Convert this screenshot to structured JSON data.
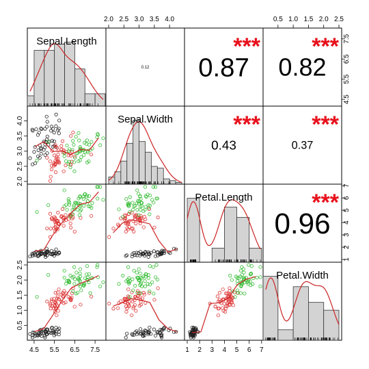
{
  "chart_data": {
    "type": "scatter-matrix",
    "variables": [
      "Sepal.Length",
      "Sepal.Width",
      "Petal.Length",
      "Petal.Width"
    ],
    "ranges": [
      [
        4.3,
        7.9
      ],
      [
        2.0,
        4.4
      ],
      [
        1.0,
        6.9
      ],
      [
        0.1,
        2.5
      ]
    ],
    "ticks": [
      [
        "4.5",
        "5.5",
        "6.5",
        "7.5"
      ],
      [
        "2.0",
        "2.5",
        "3.0",
        "3.5",
        "4.0"
      ],
      [
        "1",
        "2",
        "3",
        "4",
        "5",
        "6",
        "7"
      ],
      [
        "0.5",
        "1.0",
        "1.5",
        "2.0",
        "2.5"
      ]
    ],
    "correlations": [
      {
        "pair": [
          "Sepal.Length",
          "Sepal.Width"
        ],
        "value": "0.12",
        "stars": ""
      },
      {
        "pair": [
          "Sepal.Length",
          "Petal.Length"
        ],
        "value": "0.87",
        "stars": "***"
      },
      {
        "pair": [
          "Sepal.Length",
          "Petal.Width"
        ],
        "value": "0.82",
        "stars": "***"
      },
      {
        "pair": [
          "Sepal.Width",
          "Petal.Length"
        ],
        "value": "0.43",
        "stars": "***"
      },
      {
        "pair": [
          "Sepal.Width",
          "Petal.Width"
        ],
        "value": "0.37",
        "stars": "***"
      },
      {
        "pair": [
          "Petal.Length",
          "Petal.Width"
        ],
        "value": "0.96",
        "stars": "***"
      }
    ],
    "groups": [
      {
        "color": "#222222",
        "mean": [
          5.0,
          3.4,
          1.46,
          0.25
        ],
        "sd": [
          0.35,
          0.38,
          0.17,
          0.1
        ]
      },
      {
        "color": "#dd3333",
        "mean": [
          5.9,
          2.77,
          4.26,
          1.33
        ],
        "sd": [
          0.5,
          0.31,
          0.47,
          0.2
        ]
      },
      {
        "color": "#33bb33",
        "mean": [
          6.6,
          2.97,
          5.55,
          2.03
        ],
        "sd": [
          0.6,
          0.32,
          0.55,
          0.27
        ]
      }
    ],
    "histograms": [
      {
        "bins": [
          4.0,
          4.5,
          5.0,
          5.5,
          6.0,
          6.5,
          7.0,
          7.5,
          8.0
        ],
        "counts": [
          5,
          27,
          27,
          30,
          31,
          18,
          6,
          6
        ]
      },
      {
        "bins": [
          2.0,
          2.2,
          2.4,
          2.6,
          2.8,
          3.0,
          3.2,
          3.4,
          3.6,
          3.8,
          4.0,
          4.2,
          4.4
        ],
        "counts": [
          4,
          7,
          13,
          23,
          36,
          24,
          18,
          10,
          9,
          3,
          2,
          1
        ]
      },
      {
        "bins": [
          1,
          2,
          3,
          4,
          5,
          6,
          7
        ],
        "counts": [
          50,
          0,
          11,
          43,
          35,
          11
        ]
      },
      {
        "bins": [
          0,
          0.5,
          1.0,
          1.5,
          2.0,
          2.5
        ],
        "counts": [
          49,
          8,
          41,
          29,
          23
        ]
      }
    ],
    "colors": {
      "points_setosa": "#222222",
      "points_versicolor": "#dd3333",
      "points_virginica": "#33bb33",
      "smooth": "#cc2222",
      "stars": "#e8101c",
      "hist_fill": "#d3d3d3"
    }
  }
}
